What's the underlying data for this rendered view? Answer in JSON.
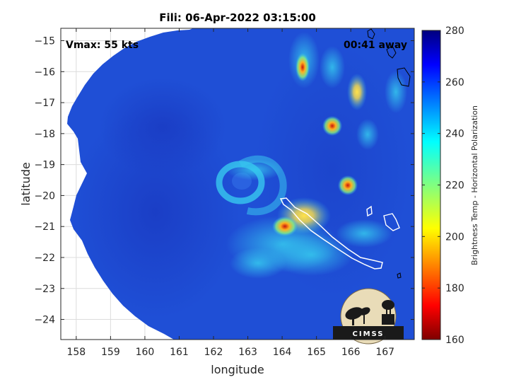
{
  "chart_data": {
    "type": "heatmap",
    "title": "Fili: 06-Apr-2022 03:15:00",
    "xlabel": "longitude",
    "ylabel": "latitude",
    "xlim": [
      157.55,
      167.85
    ],
    "ylim": [
      -24.65,
      -14.6
    ],
    "xticks": [
      158,
      159,
      160,
      161,
      162,
      163,
      164,
      165,
      166,
      167
    ],
    "yticks": [
      -15,
      -16,
      -17,
      -18,
      -19,
      -20,
      -21,
      -22,
      -23,
      -24
    ],
    "grid": true,
    "annotations": {
      "vmax": "Vmax: 55 kts",
      "time_away": "00:41 away"
    },
    "colorbar": {
      "label": "Brightness Temp - Horizontal Polarization",
      "range": [
        160,
        280
      ],
      "ticks": [
        280,
        260,
        240,
        220,
        200,
        180,
        160
      ],
      "colormap": "jet"
    },
    "swath": {
      "background_value": 268,
      "center_lon": 163.1,
      "center_lat": -19.65,
      "features": [
        {
          "lon": 162.4,
          "lat": -19.7,
          "value": 232
        },
        {
          "lon": 162.9,
          "lat": -19.35,
          "value": 240
        },
        {
          "lon": 164.0,
          "lat": -21.0,
          "value": 192
        },
        {
          "lon": 164.6,
          "lat": -21.6,
          "value": 232
        },
        {
          "lon": 165.5,
          "lat": -17.8,
          "value": 196
        },
        {
          "lon": 165.9,
          "lat": -19.7,
          "value": 200
        },
        {
          "lon": 164.5,
          "lat": -15.8,
          "value": 205
        },
        {
          "lon": 165.0,
          "lat": -16.5,
          "value": 230
        },
        {
          "lon": 166.0,
          "lat": -16.7,
          "value": 215
        },
        {
          "lon": 163.6,
          "lat": -22.0,
          "value": 240
        }
      ]
    },
    "logo": "CIMSS"
  },
  "colors": {
    "background": "#1f4fd6",
    "outline": "#ffffff",
    "island_outline": "#000000"
  }
}
